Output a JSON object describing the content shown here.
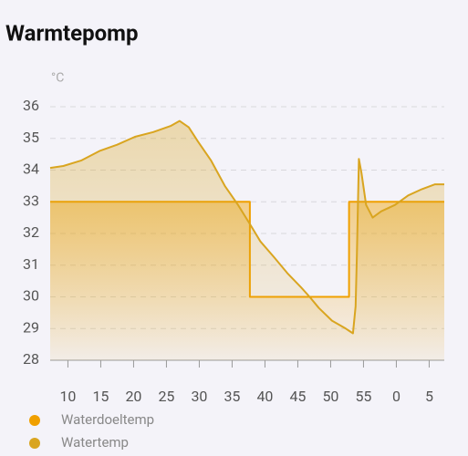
{
  "chart_data": {
    "type": "line",
    "title": "Warmtepomp",
    "y_label": "°C",
    "xlim": [
      7.3,
      67.3
    ],
    "xticks": [
      10,
      15,
      20,
      25,
      30,
      35,
      40,
      45,
      50,
      55,
      {
        "value": 60,
        "label": "0"
      },
      {
        "value": 65,
        "label": "5"
      }
    ],
    "ylim": [
      28,
      36
    ],
    "yticks": [
      28,
      29,
      30,
      31,
      32,
      33,
      34,
      35,
      36
    ],
    "grid": true,
    "legend": "bottom",
    "series": [
      {
        "name": "Waterdoeltemp",
        "color": "#f0a000",
        "x": [
          7.3,
          37.7,
          37.7,
          52.8,
          52.8,
          67.3
        ],
        "values": [
          33,
          33,
          30,
          30,
          33,
          33
        ]
      },
      {
        "name": "Watertemp",
        "color": "#d9a520",
        "x": [
          7.3,
          9.3,
          12.0,
          14.8,
          17.5,
          20.2,
          23.0,
          25.7,
          27.0,
          28.4,
          29.8,
          31.8,
          33.9,
          35.9,
          37.7,
          39.3,
          41.4,
          43.4,
          45.5,
          46.8,
          48.2,
          50.2,
          52.3,
          53.4,
          53.8,
          54.0,
          54.3,
          54.7,
          55.4,
          56.4,
          57.7,
          59.8,
          61.8,
          63.9,
          65.9,
          67.3
        ],
        "values": [
          34.07,
          34.13,
          34.3,
          34.6,
          34.8,
          35.05,
          35.2,
          35.4,
          35.55,
          35.35,
          34.9,
          34.3,
          33.5,
          32.9,
          32.3,
          31.75,
          31.25,
          30.75,
          30.3,
          30.0,
          29.65,
          29.25,
          29.0,
          28.85,
          29.7,
          31.3,
          34.35,
          33.9,
          32.9,
          32.5,
          32.7,
          32.9,
          33.2,
          33.4,
          33.55,
          33.55
        ]
      }
    ]
  }
}
